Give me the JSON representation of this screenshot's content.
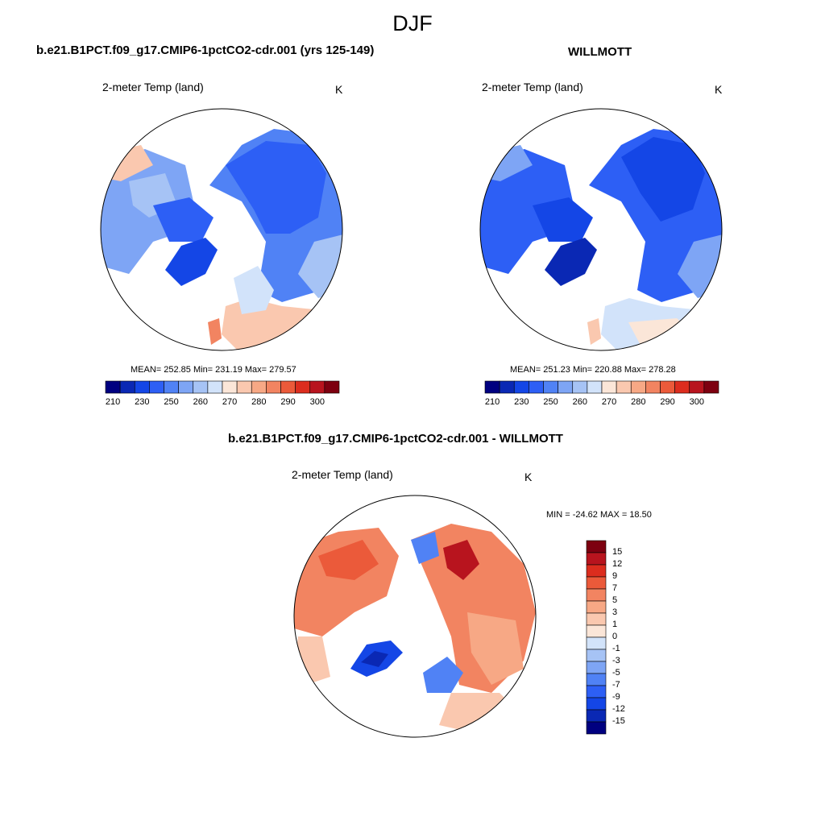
{
  "figure": {
    "title": "DJF"
  },
  "panels": [
    {
      "title": "b.e21.B1PCT.f09_g17.CMIP6-1pctCO2-cdr.001 (yrs 125-149)",
      "variable": "2-meter Temp (land)",
      "units": "K",
      "stats": "MEAN= 252.85  Min= 231.19  Max= 279.57"
    },
    {
      "title": "WILLMOTT",
      "variable": "2-meter Temp (land)",
      "units": "K",
      "stats": "MEAN= 251.23  Min= 220.88  Max= 278.28"
    },
    {
      "title": "b.e21.B1PCT.f09_g17.CMIP6-1pctCO2-cdr.001 - WILLMOTT",
      "variable": "2-meter Temp (land)",
      "units": "K",
      "stats": "MIN = -24.62 MAX =  18.50"
    }
  ],
  "abs_colorbar": {
    "colors": [
      "#000080",
      "#0a28b4",
      "#1446e6",
      "#2d5ff5",
      "#5082f5",
      "#7ea5f5",
      "#a6c3f5",
      "#d2e3fa",
      "#fbe6d8",
      "#fac8af",
      "#f7a885",
      "#f28461",
      "#eb5a3a",
      "#dc2d1e",
      "#b8141e",
      "#7d0010"
    ],
    "labels": [
      "210",
      "230",
      "250",
      "260",
      "270",
      "280",
      "290",
      "300"
    ]
  },
  "diff_colorbar": {
    "colors": [
      "#000080",
      "#0a28b4",
      "#1446e6",
      "#2d5ff5",
      "#5082f5",
      "#7ea5f5",
      "#a6c3f5",
      "#d2e3fa",
      "#fbe6d8",
      "#fac8af",
      "#f7a885",
      "#f28461",
      "#eb5a3a",
      "#dc2d1e",
      "#b8141e",
      "#7d0010"
    ],
    "labels": [
      "15",
      "12",
      "9",
      "7",
      "5",
      "3",
      "1",
      "0",
      "-1",
      "-3",
      "-5",
      "-7",
      "-9",
      "-12",
      "-15"
    ]
  },
  "map_colors": {
    "land_outline": "#000000",
    "ocean": "#ffffff"
  }
}
